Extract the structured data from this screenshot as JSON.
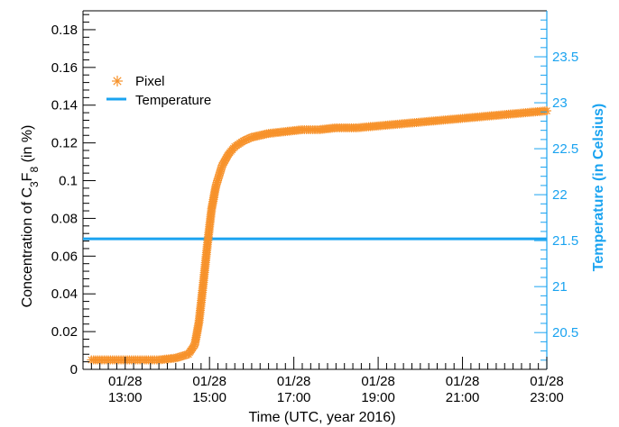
{
  "chart_data": {
    "type": "scatter",
    "xlabel": "Time (UTC, year 2016)",
    "ylabel_main": "Concentration of C",
    "ylabel_sub1": "3",
    "ylabel_mid": "F",
    "ylabel_sub2": "8",
    "ylabel_tail": " (in %)",
    "y2label": "Temperature (in Celsius)",
    "x_range_hours": [
      12.0,
      23.0
    ],
    "ylim": [
      0,
      0.19
    ],
    "y2lim": [
      20.1,
      24.0
    ],
    "x_ticks": [
      {
        "hour": 13,
        "date": "01/28",
        "time": "13:00"
      },
      {
        "hour": 15,
        "date": "01/28",
        "time": "15:00"
      },
      {
        "hour": 17,
        "date": "01/28",
        "time": "17:00"
      },
      {
        "hour": 19,
        "date": "01/28",
        "time": "19:00"
      },
      {
        "hour": 21,
        "date": "01/28",
        "time": "21:00"
      },
      {
        "hour": 23,
        "date": "01/28",
        "time": "23:00"
      }
    ],
    "y_ticks": [
      {
        "value": 0,
        "label": "0"
      },
      {
        "value": 0.02,
        "label": "0.02"
      },
      {
        "value": 0.04,
        "label": "0.04"
      },
      {
        "value": 0.06,
        "label": "0.06"
      },
      {
        "value": 0.08,
        "label": "0.08"
      },
      {
        "value": 0.1,
        "label": "0.1"
      },
      {
        "value": 0.12,
        "label": "0.12"
      },
      {
        "value": 0.14,
        "label": "0.14"
      },
      {
        "value": 0.16,
        "label": "0.16"
      },
      {
        "value": 0.18,
        "label": "0.18"
      }
    ],
    "y2_ticks": [
      {
        "value": 20.5,
        "label": "20.5"
      },
      {
        "value": 21,
        "label": "21"
      },
      {
        "value": 21.5,
        "label": "21.5"
      },
      {
        "value": 22,
        "label": "22"
      },
      {
        "value": 22.5,
        "label": "22.5"
      },
      {
        "value": 23,
        "label": "23"
      },
      {
        "value": 23.5,
        "label": "23.5"
      }
    ],
    "series": [
      {
        "name": "Pixel",
        "marker": "asterisk",
        "color": "#f7922b",
        "axis": "left",
        "points": [
          [
            12.2,
            0.005
          ],
          [
            12.6,
            0.005
          ],
          [
            13.0,
            0.005
          ],
          [
            13.4,
            0.005
          ],
          [
            13.8,
            0.005
          ],
          [
            14.2,
            0.006
          ],
          [
            14.5,
            0.008
          ],
          [
            14.65,
            0.013
          ],
          [
            14.75,
            0.025
          ],
          [
            14.85,
            0.045
          ],
          [
            14.95,
            0.066
          ],
          [
            15.05,
            0.085
          ],
          [
            15.15,
            0.097
          ],
          [
            15.3,
            0.108
          ],
          [
            15.45,
            0.114
          ],
          [
            15.6,
            0.118
          ],
          [
            15.8,
            0.121
          ],
          [
            16.0,
            0.123
          ],
          [
            16.4,
            0.125
          ],
          [
            16.8,
            0.126
          ],
          [
            17.2,
            0.127
          ],
          [
            17.6,
            0.127
          ],
          [
            18.0,
            0.128
          ],
          [
            18.5,
            0.128
          ],
          [
            19.0,
            0.129
          ],
          [
            19.5,
            0.13
          ],
          [
            20.0,
            0.131
          ],
          [
            20.5,
            0.132
          ],
          [
            21.0,
            0.133
          ],
          [
            21.5,
            0.134
          ],
          [
            22.0,
            0.135
          ],
          [
            22.5,
            0.136
          ],
          [
            23.0,
            0.137
          ]
        ]
      },
      {
        "name": "Temperature",
        "marker": "line",
        "color": "#1aa3f0",
        "axis": "right",
        "points": [
          [
            12.0,
            21.52
          ],
          [
            23.0,
            21.52
          ]
        ]
      }
    ],
    "legend_position": "top-left",
    "grid": false
  }
}
